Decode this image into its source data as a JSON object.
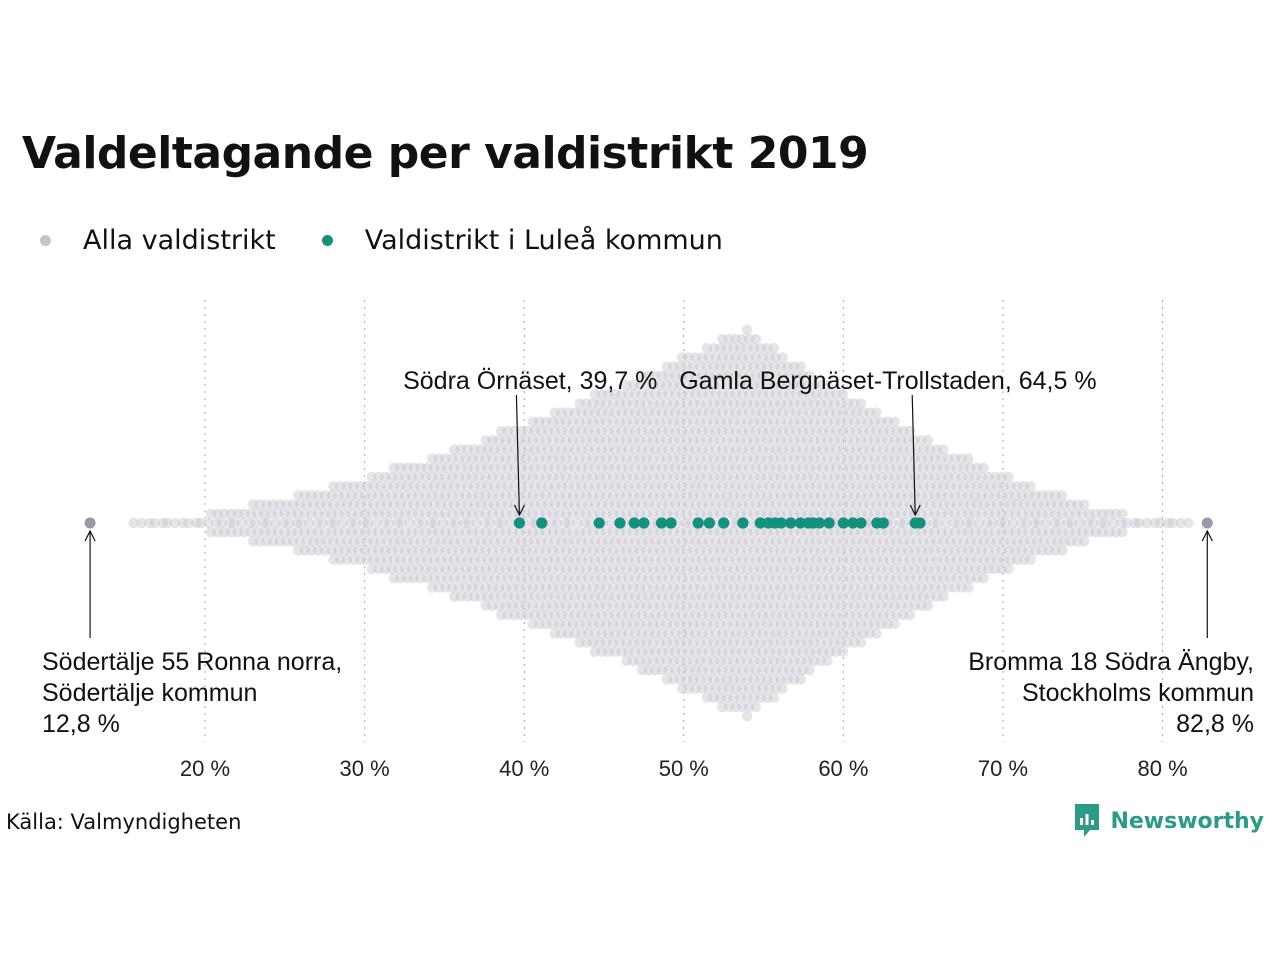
{
  "title": "Valdeltagande per valdistrikt 2019",
  "legend": [
    {
      "label": "Alla valdistrikt",
      "color": "#c5c3cc"
    },
    {
      "label": "Valdistrikt i Luleå kommun",
      "color": "#14917e"
    }
  ],
  "source": "Källa: Valmyndigheten",
  "brand": {
    "name": "Newsworthy",
    "icon": "newsworthy-logo-icon",
    "color": "#2b9a86"
  },
  "chart_data": {
    "type": "scatter",
    "subtype": "beeswarm",
    "xlabel": "",
    "ylabel": "",
    "xlim": [
      12,
      84
    ],
    "x_ticks": [
      20,
      30,
      40,
      50,
      60,
      70,
      80
    ],
    "x_tick_labels": [
      "20 %",
      "30 %",
      "40 %",
      "50 %",
      "60 %",
      "70 %",
      "80 %"
    ],
    "grid": "vertical dotted",
    "series": [
      {
        "name": "Alla valdistrikt",
        "color": "#c5c3cc",
        "distribution": "approximately symmetric around 53.7 %, range 12,8 % to 82,8 %",
        "values": [
          12.8,
          82.8
        ]
      },
      {
        "name": "Valdistrikt i Luleå kommun",
        "color": "#14917e",
        "values": [
          39.7,
          41.1,
          44.7,
          46.0,
          46.9,
          47.5,
          48.6,
          49.2,
          50.9,
          51.6,
          52.5,
          53.7,
          54.8,
          55.3,
          55.7,
          56.1,
          56.7,
          57.3,
          57.8,
          58.1,
          58.5,
          59.1,
          60.0,
          60.6,
          61.1,
          62.1,
          62.5,
          64.5,
          64.8
        ]
      }
    ],
    "annotations": [
      {
        "lines": [
          "Södra Örnäset, 39,7 %"
        ],
        "x": 39.7,
        "position": "above",
        "anchor": "end"
      },
      {
        "lines": [
          "Gamla Bergnäset-Trollstaden, 64,5 %"
        ],
        "x": 64.5,
        "position": "above",
        "anchor": "start"
      },
      {
        "lines": [
          "Södertälje 55 Ronna norra,",
          "Södertälje kommun",
          "12,8 %"
        ],
        "x": 12.8,
        "position": "below",
        "anchor": "start"
      },
      {
        "lines": [
          "Bromma 18 Södra Ängby,",
          "Stockholms kommun",
          "82,8 %"
        ],
        "x": 82.8,
        "position": "below",
        "anchor": "end"
      }
    ]
  }
}
